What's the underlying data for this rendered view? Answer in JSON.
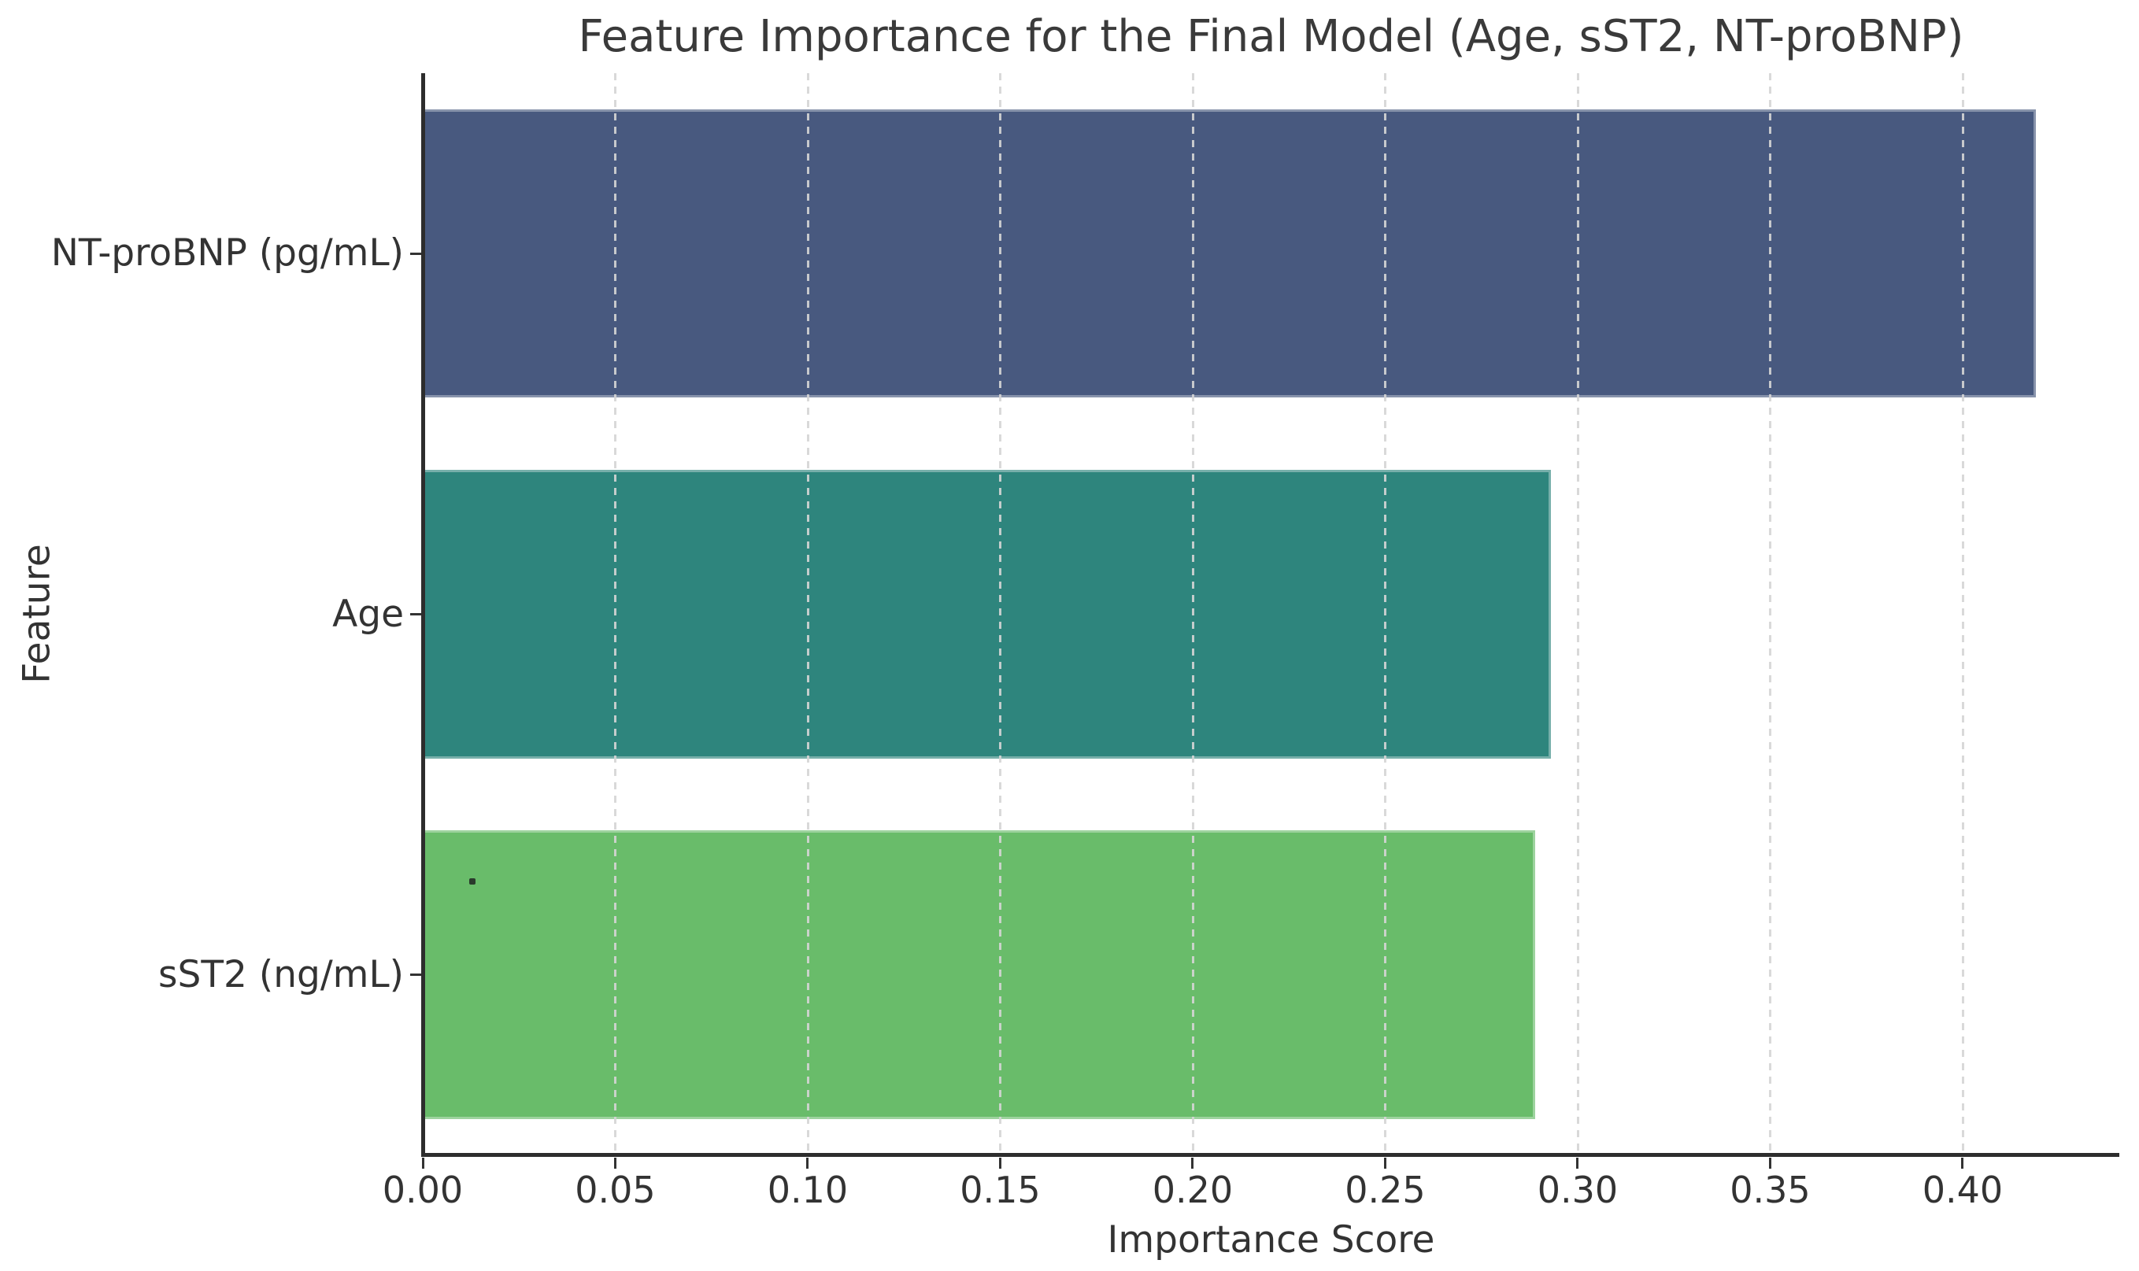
{
  "chart_data": {
    "type": "bar",
    "orientation": "horizontal",
    "title": "Feature Importance for the Final Model (Age, sST2, NT-proBNP)",
    "xlabel": "Importance Score",
    "ylabel": "Feature",
    "categories": [
      "NT-proBNP (pg/mL)",
      "Age",
      "sST2 (ng/mL)"
    ],
    "values": [
      0.419,
      0.293,
      0.289
    ],
    "bar_colors": [
      "#48597f",
      "#2e857d",
      "#69bc6a"
    ],
    "xlim": [
      0,
      0.4407
    ],
    "xtick_values": [
      0.0,
      0.05,
      0.1,
      0.15,
      0.2,
      0.25,
      0.3,
      0.35,
      0.4
    ],
    "xtick_labels": [
      "0.00",
      "0.05",
      "0.10",
      "0.15",
      "0.20",
      "0.25",
      "0.30",
      "0.35",
      "0.40"
    ],
    "grid": "vertical-dashed",
    "legend": "none",
    "background": "#ffffff",
    "spine_color": "#2d2d2d",
    "grid_color": "#d5d5d5",
    "text_color": "#333333"
  }
}
